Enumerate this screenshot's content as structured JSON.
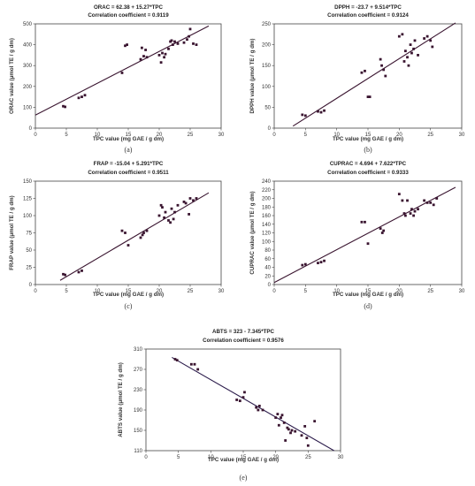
{
  "colors": {
    "point": "#3a1530",
    "line": "#3a1530",
    "line_e": "#2a1a4a",
    "frame": "#444444"
  },
  "chart_data": [
    {
      "id": "a",
      "type": "scatter",
      "panel_label": "(a)",
      "title": "ORAC = 62.38 + 15.27*TPC",
      "subtitle": "Correlation coefficient = 0.9119",
      "xlabel": "TPC value (mg GAE / g dm)",
      "ylabel": "ORAC value (μmol TE / g dm)",
      "xlim": [
        0,
        30
      ],
      "ylim": [
        0,
        500
      ],
      "xticks": [
        0,
        5,
        10,
        15,
        20,
        25,
        30
      ],
      "yticks": [
        0,
        100,
        200,
        300,
        400,
        500
      ],
      "fit": {
        "intercept": 62.38,
        "slope": 15.27,
        "x_range": [
          0,
          28
        ]
      },
      "points": [
        [
          4.5,
          105
        ],
        [
          4.8,
          102
        ],
        [
          7,
          145
        ],
        [
          7.5,
          150
        ],
        [
          8,
          158
        ],
        [
          14,
          265
        ],
        [
          14.5,
          395
        ],
        [
          14.8,
          400
        ],
        [
          17,
          330
        ],
        [
          17.2,
          385
        ],
        [
          17.5,
          345
        ],
        [
          17.8,
          375
        ],
        [
          18,
          340
        ],
        [
          20,
          350
        ],
        [
          20.3,
          315
        ],
        [
          20.5,
          360
        ],
        [
          20.8,
          340
        ],
        [
          21,
          355
        ],
        [
          21.5,
          380
        ],
        [
          21.8,
          415
        ],
        [
          22,
          420
        ],
        [
          22.2,
          400
        ],
        [
          22.5,
          415
        ],
        [
          23,
          405
        ],
        [
          24,
          410
        ],
        [
          24.5,
          425
        ],
        [
          24.8,
          440
        ],
        [
          25,
          475
        ],
        [
          25.5,
          405
        ],
        [
          26,
          400
        ]
      ]
    },
    {
      "id": "b",
      "type": "scatter",
      "panel_label": "(b)",
      "title": "DPPH = -23.7 + 9.514*TPC",
      "subtitle": "Correlation coefficient = 0.9124",
      "xlabel": "TPC value (mg GAE / g dm)",
      "ylabel": "DPPH value (μmol TE / g dm)",
      "xlim": [
        0,
        30
      ],
      "ylim": [
        0,
        250
      ],
      "xticks": [
        0,
        5,
        10,
        15,
        20,
        25,
        30
      ],
      "yticks": [
        0,
        50,
        100,
        150,
        200,
        250
      ],
      "fit": {
        "intercept": -23.7,
        "slope": 9.514,
        "x_range": [
          3,
          29
        ]
      },
      "points": [
        [
          4.5,
          32
        ],
        [
          5,
          30
        ],
        [
          7,
          40
        ],
        [
          7.5,
          38
        ],
        [
          8,
          42
        ],
        [
          14,
          133
        ],
        [
          14.5,
          137
        ],
        [
          15,
          75
        ],
        [
          15.3,
          75
        ],
        [
          17,
          165
        ],
        [
          17.2,
          150
        ],
        [
          17.5,
          140
        ],
        [
          17.8,
          125
        ],
        [
          20,
          220
        ],
        [
          20.5,
          225
        ],
        [
          20.8,
          160
        ],
        [
          21,
          185
        ],
        [
          21.3,
          170
        ],
        [
          21.5,
          150
        ],
        [
          21.8,
          200
        ],
        [
          22,
          180
        ],
        [
          22.3,
          190
        ],
        [
          22.5,
          210
        ],
        [
          23,
          175
        ],
        [
          24,
          215
        ],
        [
          24.5,
          220
        ],
        [
          25,
          210
        ],
        [
          25.3,
          195
        ]
      ]
    },
    {
      "id": "c",
      "type": "scatter",
      "panel_label": "(c)",
      "title": "FRAP = -15.04 + 5.291*TPC",
      "subtitle": "Correlation coefficient = 0.9511",
      "xlabel": "TPC value (mg GAE / g dm)",
      "ylabel": "FRAP value (μmol TE / g dm)",
      "xlim": [
        0,
        30
      ],
      "ylim": [
        0,
        150
      ],
      "xticks": [
        0,
        5,
        10,
        15,
        20,
        25,
        30
      ],
      "yticks": [
        0,
        25,
        50,
        75,
        100,
        125,
        150
      ],
      "fit": {
        "intercept": -15.04,
        "slope": 5.291,
        "x_range": [
          4,
          28
        ]
      },
      "points": [
        [
          4.5,
          15
        ],
        [
          4.8,
          14
        ],
        [
          7,
          18
        ],
        [
          7.5,
          20
        ],
        [
          14,
          78
        ],
        [
          14.5,
          75
        ],
        [
          15,
          57
        ],
        [
          17,
          68
        ],
        [
          17.3,
          72
        ],
        [
          17.5,
          75
        ],
        [
          18,
          78
        ],
        [
          20,
          100
        ],
        [
          20.3,
          115
        ],
        [
          20.5,
          112
        ],
        [
          20.8,
          97
        ],
        [
          21,
          105
        ],
        [
          21.5,
          93
        ],
        [
          21.8,
          90
        ],
        [
          22,
          110
        ],
        [
          22.3,
          95
        ],
        [
          22.5,
          105
        ],
        [
          23,
          115
        ],
        [
          24,
          120
        ],
        [
          24.3,
          118
        ],
        [
          24.8,
          102
        ],
        [
          25,
          125
        ],
        [
          25.5,
          122
        ],
        [
          26,
          125
        ]
      ]
    },
    {
      "id": "d",
      "type": "scatter",
      "panel_label": "(d)",
      "title": "CUPRAC = 4.694 + 7.622*TPC",
      "subtitle": "Correlation coefficient = 0.9333",
      "xlabel": "TPC value (mg GAE / g dm)",
      "ylabel": "CUPRAC value (μmol TE / g dm)",
      "xlim": [
        0,
        30
      ],
      "ylim": [
        0,
        240
      ],
      "xticks": [
        0,
        5,
        10,
        15,
        20,
        25,
        30
      ],
      "yticks": [
        0,
        20,
        40,
        60,
        80,
        100,
        120,
        140,
        160,
        180,
        200,
        220,
        240
      ],
      "fit": {
        "intercept": 4.694,
        "slope": 7.622,
        "x_range": [
          0,
          29
        ]
      },
      "points": [
        [
          4.5,
          45
        ],
        [
          5,
          47
        ],
        [
          7,
          50
        ],
        [
          7.5,
          52
        ],
        [
          8,
          55
        ],
        [
          14,
          145
        ],
        [
          14.5,
          145
        ],
        [
          15,
          95
        ],
        [
          17,
          130
        ],
        [
          17.3,
          120
        ],
        [
          17.5,
          125
        ],
        [
          20,
          210
        ],
        [
          20.5,
          195
        ],
        [
          20.8,
          165
        ],
        [
          21,
          160
        ],
        [
          21.3,
          195
        ],
        [
          21.8,
          165
        ],
        [
          22,
          175
        ],
        [
          22.3,
          160
        ],
        [
          22.5,
          170
        ],
        [
          23,
          175
        ],
        [
          24,
          195
        ],
        [
          24.5,
          190
        ],
        [
          25,
          190
        ],
        [
          25.5,
          185
        ],
        [
          26,
          200
        ]
      ]
    },
    {
      "id": "e",
      "type": "scatter",
      "panel_label": "(e)",
      "title": "ABTS = 323 - 7.345*TPC",
      "subtitle": "Correlation coefficient = 0.9576",
      "xlabel": "TPC value (mg GAE / g dm)",
      "ylabel": "ABTS value (μmol TE / g dm)",
      "xlim": [
        0,
        30
      ],
      "ylim": [
        110,
        310
      ],
      "xticks": [
        0,
        5,
        10,
        15,
        20,
        25,
        30
      ],
      "yticks": [
        110,
        150,
        190,
        230,
        270,
        310
      ],
      "fit": {
        "intercept": 323,
        "slope": -7.345,
        "x_range": [
          4,
          29
        ]
      },
      "points": [
        [
          4.5,
          290
        ],
        [
          4.8,
          288
        ],
        [
          7,
          280
        ],
        [
          7.5,
          280
        ],
        [
          8,
          270
        ],
        [
          14,
          210
        ],
        [
          14.5,
          208
        ],
        [
          15,
          215
        ],
        [
          15.2,
          225
        ],
        [
          17,
          195
        ],
        [
          17.3,
          190
        ],
        [
          17.5,
          198
        ],
        [
          18,
          190
        ],
        [
          20,
          175
        ],
        [
          20.3,
          182
        ],
        [
          20.5,
          160
        ],
        [
          20.8,
          175
        ],
        [
          21,
          180
        ],
        [
          21.3,
          165
        ],
        [
          21.5,
          130
        ],
        [
          21.8,
          155
        ],
        [
          22,
          152
        ],
        [
          22.3,
          145
        ],
        [
          22.5,
          150
        ],
        [
          23,
          148
        ],
        [
          24,
          140
        ],
        [
          24.5,
          158
        ],
        [
          24.8,
          135
        ],
        [
          25,
          120
        ],
        [
          26,
          168
        ]
      ]
    }
  ]
}
